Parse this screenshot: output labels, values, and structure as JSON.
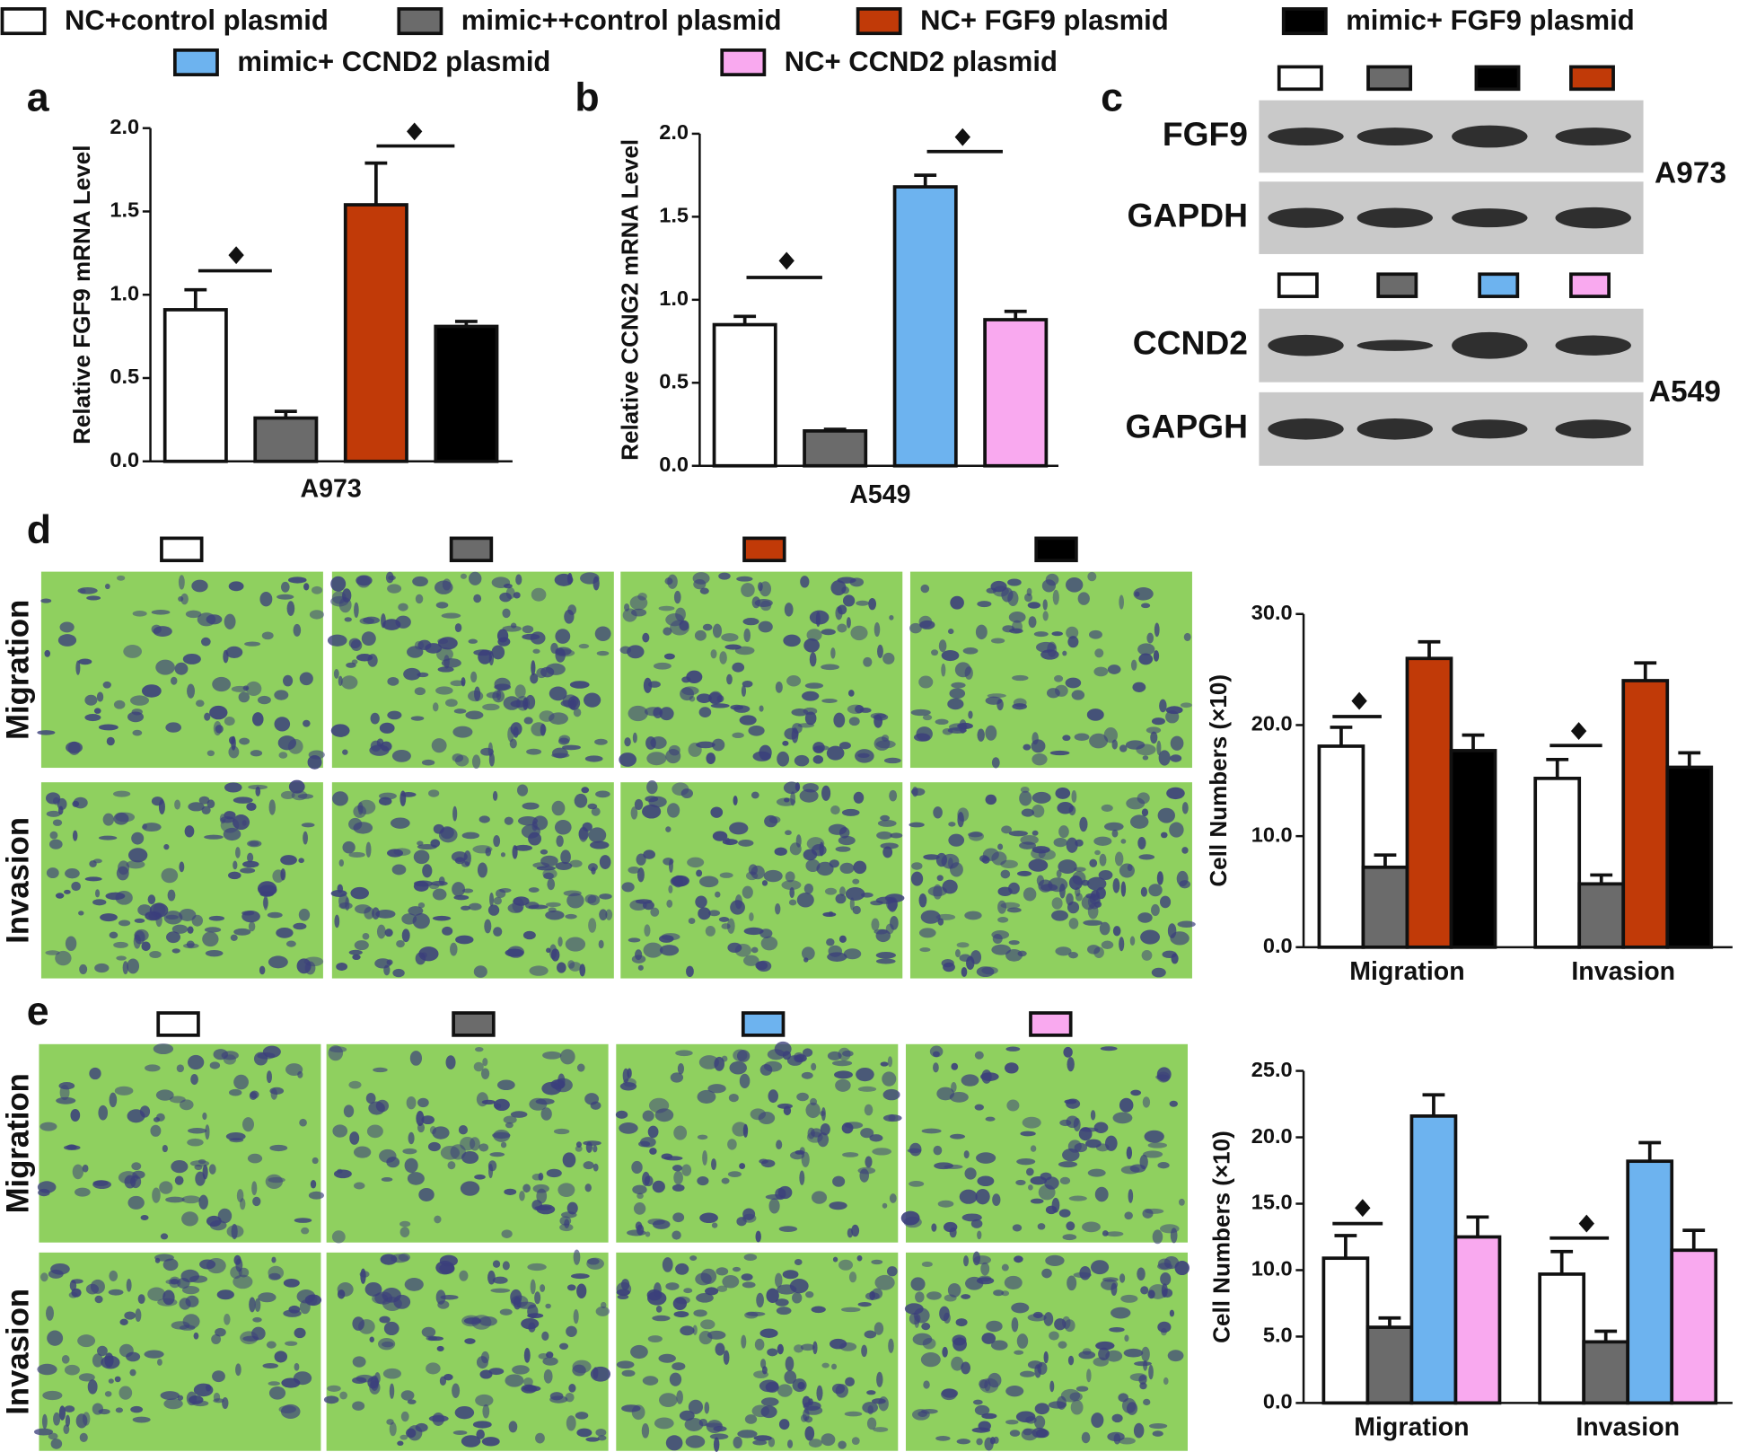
{
  "legend": [
    {
      "label": "NC+control plasmid",
      "color": "#ffffff"
    },
    {
      "label": "mimic++control plasmid",
      "color": "#6b6b6b"
    },
    {
      "label": "NC+ FGF9 plasmid",
      "color": "#c13a08"
    },
    {
      "label": "mimic+ FGF9 plasmid",
      "color": "#000000"
    },
    {
      "label": "mimic+ CCND2 plasmid",
      "color": "#6db3ef"
    },
    {
      "label": "NC+ CCND2 plasmid",
      "color": "#f9a9ef"
    }
  ],
  "panels": [
    "a",
    "b",
    "c",
    "d",
    "e"
  ],
  "blot": {
    "rows": [
      "FGF9",
      "GAPDH",
      "CCND2",
      "GAPGH"
    ],
    "cells": [
      "A973",
      "A549"
    ]
  },
  "micrographs": {
    "d": [
      "Migration",
      "Invasion"
    ],
    "e": [
      "Migration",
      "Invasion"
    ]
  },
  "chart_data": [
    {
      "type": "bar",
      "ylabel": "Relative FGF9 mRNA Level",
      "categories": [
        "A973"
      ],
      "series": [
        {
          "color": "#ffffff",
          "values": [
            0.91
          ],
          "errors": [
            0.12
          ]
        },
        {
          "color": "#6b6b6b",
          "values": [
            0.26
          ],
          "errors": [
            0.04
          ]
        },
        {
          "color": "#c13a08",
          "values": [
            1.54
          ],
          "errors": [
            0.25
          ]
        },
        {
          "color": "#000000",
          "values": [
            0.81
          ],
          "errors": [
            0.03
          ]
        }
      ],
      "ylim": [
        0,
        2.0
      ],
      "yticks": [
        {
          "value": 0,
          "label": "0.0"
        },
        {
          "value": 0.5,
          "label": "0.5"
        },
        {
          "value": 1.0,
          "label": "1.0"
        },
        {
          "value": 1.5,
          "label": "1.5"
        },
        {
          "value": 2.0,
          "label": "2.0"
        }
      ]
    },
    {
      "type": "bar",
      "ylabel": "Relative CCNG2 mRNA Level",
      "categories": [
        "A549"
      ],
      "series": [
        {
          "color": "#ffffff",
          "values": [
            0.85
          ],
          "errors": [
            0.05
          ]
        },
        {
          "color": "#6b6b6b",
          "values": [
            0.21
          ],
          "errors": [
            0.01
          ]
        },
        {
          "color": "#6db3ef",
          "values": [
            1.68
          ],
          "errors": [
            0.07
          ]
        },
        {
          "color": "#f9a9ef",
          "values": [
            0.88
          ],
          "errors": [
            0.05
          ]
        }
      ],
      "ylim": [
        0,
        2.0
      ],
      "yticks": [
        {
          "value": 0,
          "label": "0.0"
        },
        {
          "value": 0.5,
          "label": "0.5"
        },
        {
          "value": 1.0,
          "label": "1.0"
        },
        {
          "value": 1.5,
          "label": "1.5"
        },
        {
          "value": 2.0,
          "label": "2.0"
        }
      ]
    },
    {
      "type": "bar",
      "ylabel": "Cell Numbers (×10)",
      "categories": [
        "Migration",
        "Invasion"
      ],
      "series": [
        {
          "color": "#ffffff",
          "values": [
            18.1,
            15.2
          ],
          "errors": [
            1.7,
            1.7
          ]
        },
        {
          "color": "#6b6b6b",
          "values": [
            7.2,
            5.7
          ],
          "errors": [
            1.1,
            0.8
          ]
        },
        {
          "color": "#c13a08",
          "values": [
            26.0,
            24.0
          ],
          "errors": [
            1.5,
            1.6
          ]
        },
        {
          "color": "#000000",
          "values": [
            17.7,
            16.2
          ],
          "errors": [
            1.4,
            1.3
          ]
        }
      ],
      "ylim": [
        0,
        30
      ],
      "yticks": [
        {
          "value": 0,
          "label": "0.0"
        },
        {
          "value": 10,
          "label": "10.0"
        },
        {
          "value": 20,
          "label": "20.0"
        },
        {
          "value": 30,
          "label": "30.0"
        }
      ]
    },
    {
      "type": "bar",
      "ylabel": "Cell Numbers (×10)",
      "categories": [
        "Migration",
        "Invasion"
      ],
      "series": [
        {
          "color": "#ffffff",
          "values": [
            10.9,
            9.7
          ],
          "errors": [
            1.7,
            1.7
          ]
        },
        {
          "color": "#6b6b6b",
          "values": [
            5.7,
            4.6
          ],
          "errors": [
            0.7,
            0.8
          ]
        },
        {
          "color": "#6db3ef",
          "values": [
            21.6,
            18.2
          ],
          "errors": [
            1.6,
            1.4
          ]
        },
        {
          "color": "#f9a9ef",
          "values": [
            12.5,
            11.5
          ],
          "errors": [
            1.5,
            1.5
          ]
        }
      ],
      "ylim": [
        0,
        25
      ],
      "yticks": [
        {
          "value": 0,
          "label": "0.0"
        },
        {
          "value": 5,
          "label": "5.0"
        },
        {
          "value": 10,
          "label": "10.0"
        },
        {
          "value": 15,
          "label": "15.0"
        },
        {
          "value": 20,
          "label": "20.0"
        },
        {
          "value": 25,
          "label": "25.0"
        }
      ]
    }
  ]
}
